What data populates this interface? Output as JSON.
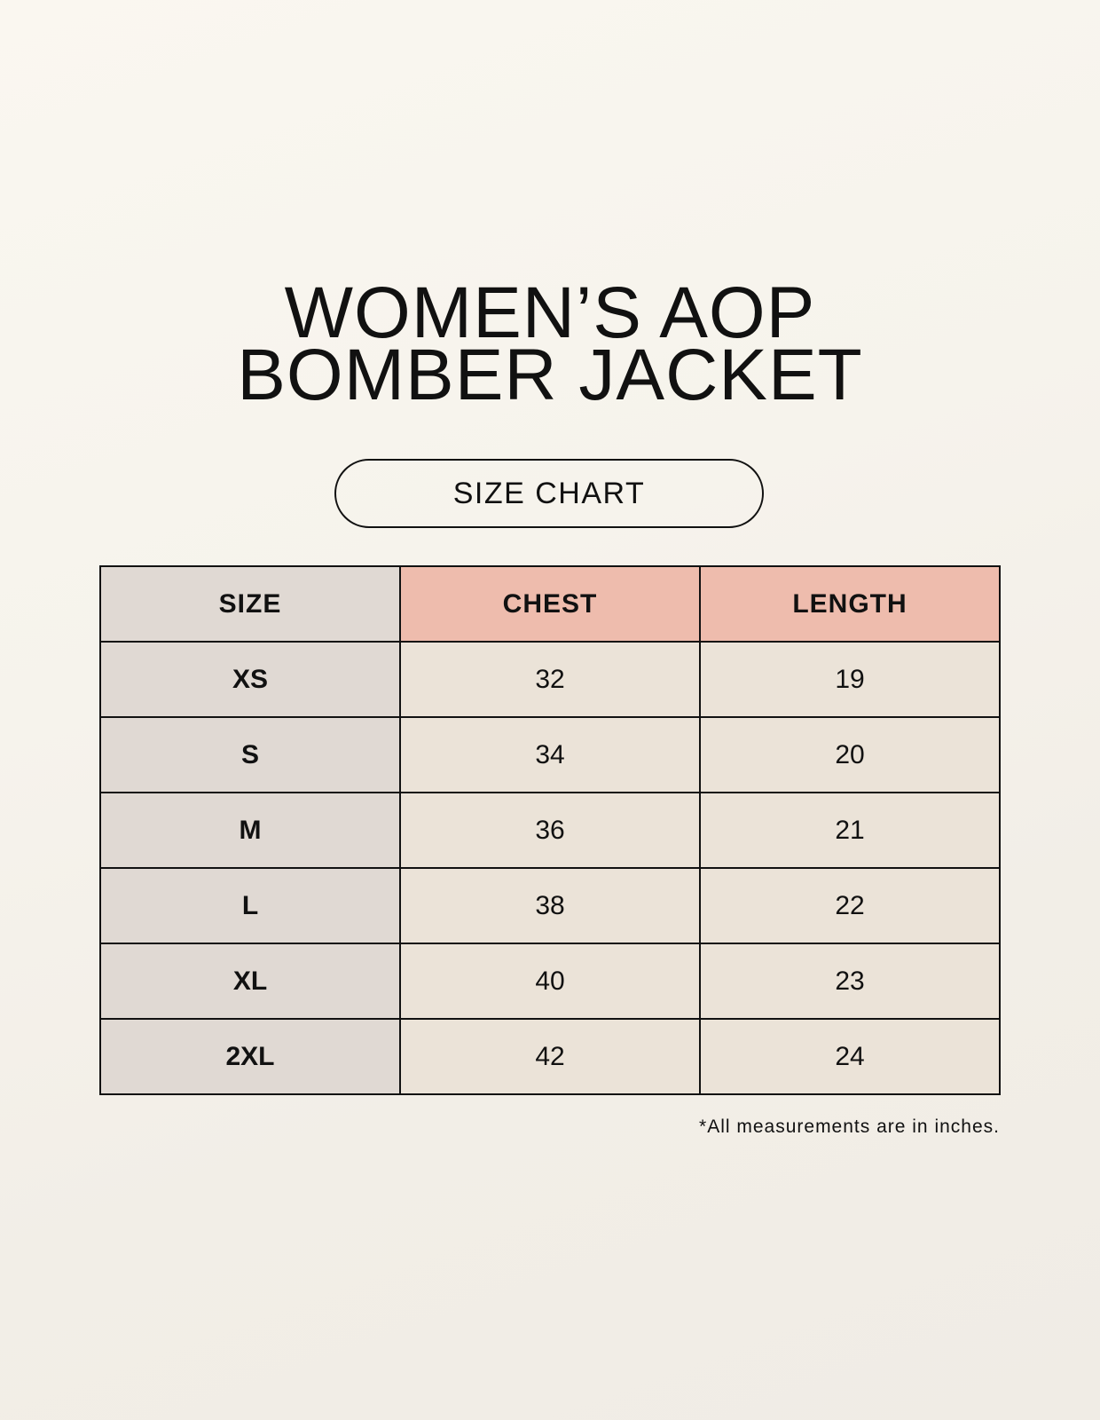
{
  "title": {
    "line1": "WOMEN’S AOP",
    "line2": "BOMBER JACKET"
  },
  "subtitle": "SIZE CHART",
  "table": {
    "headers": [
      "SIZE",
      "CHEST",
      "LENGTH"
    ],
    "rows": [
      [
        "XS",
        "32",
        "19"
      ],
      [
        "S",
        "34",
        "20"
      ],
      [
        "M",
        "36",
        "21"
      ],
      [
        "L",
        "38",
        "22"
      ],
      [
        "XL",
        "40",
        "23"
      ],
      [
        "2XL",
        "42",
        "24"
      ]
    ]
  },
  "footnote": "*All measurements are in inches.",
  "colors": {
    "size_column": "#e0d9d3",
    "header_accent": "#eebcad",
    "cell": "#ebe3d8"
  }
}
